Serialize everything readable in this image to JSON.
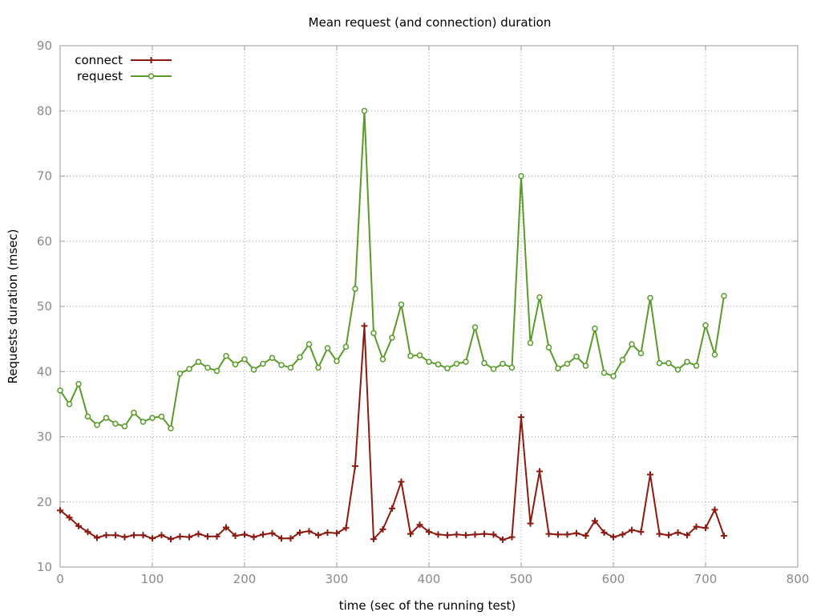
{
  "chart_data": {
    "type": "line",
    "title": "Mean request (and connection) duration",
    "xlabel": "time (sec of the running test)",
    "ylabel": "Requests duration (msec)",
    "xlim": [
      0,
      800
    ],
    "ylim": [
      10,
      90
    ],
    "xticks": [
      0,
      100,
      200,
      300,
      400,
      500,
      600,
      700,
      800
    ],
    "yticks": [
      10,
      20,
      30,
      40,
      50,
      60,
      70,
      80,
      90
    ],
    "grid": true,
    "legend_position": "top-left",
    "x": [
      0,
      10,
      20,
      30,
      40,
      50,
      60,
      70,
      80,
      90,
      100,
      110,
      120,
      130,
      140,
      150,
      160,
      170,
      180,
      190,
      200,
      210,
      220,
      230,
      240,
      250,
      260,
      270,
      280,
      290,
      300,
      310,
      320,
      330,
      340,
      350,
      360,
      370,
      380,
      390,
      400,
      410,
      420,
      430,
      440,
      450,
      460,
      470,
      480,
      490,
      500,
      510,
      520,
      530,
      540,
      550,
      560,
      570,
      580,
      590,
      600,
      610,
      620,
      630,
      640,
      650,
      660,
      670,
      680,
      690,
      700,
      710,
      720
    ],
    "series": [
      {
        "name": "connect",
        "color": "#8b1a10",
        "marker": "plus",
        "values": [
          18.7,
          17.6,
          16.3,
          15.4,
          14.5,
          14.9,
          14.9,
          14.6,
          14.9,
          14.9,
          14.4,
          14.9,
          14.3,
          14.7,
          14.6,
          15.1,
          14.7,
          14.7,
          16.1,
          14.8,
          15.0,
          14.6,
          15.0,
          15.2,
          14.4,
          14.4,
          15.3,
          15.5,
          14.9,
          15.3,
          15.2,
          16.0,
          25.5,
          47.0,
          14.3,
          15.8,
          19.0,
          23.1,
          15.1,
          16.5,
          15.4,
          15.0,
          14.9,
          15.0,
          14.9,
          15.0,
          15.1,
          15.0,
          14.2,
          14.6,
          33.0,
          16.7,
          24.7,
          15.1,
          15.0,
          15.0,
          15.2,
          14.8,
          17.1,
          15.3,
          14.6,
          15.0,
          15.7,
          15.4,
          24.2,
          15.1,
          14.9,
          15.3,
          14.9,
          16.2,
          16.0,
          18.8,
          14.8
        ]
      },
      {
        "name": "request",
        "color": "#5a9a2a",
        "marker": "circle",
        "values": [
          37.1,
          35.0,
          38.1,
          33.1,
          31.8,
          32.9,
          32.0,
          31.6,
          33.7,
          32.3,
          32.9,
          33.1,
          31.3,
          39.7,
          40.4,
          41.5,
          40.6,
          40.1,
          42.4,
          41.1,
          41.9,
          40.3,
          41.2,
          42.1,
          41.0,
          40.6,
          42.2,
          44.2,
          40.6,
          43.6,
          41.6,
          43.8,
          52.7,
          80.0,
          45.9,
          41.9,
          45.2,
          50.3,
          42.4,
          42.5,
          41.5,
          41.1,
          40.5,
          41.2,
          41.5,
          46.8,
          41.3,
          40.4,
          41.2,
          40.6,
          70.0,
          44.4,
          51.4,
          43.7,
          40.5,
          41.2,
          42.3,
          40.9,
          46.6,
          39.8,
          39.3,
          41.8,
          44.2,
          42.8,
          51.3,
          41.3,
          41.3,
          40.3,
          41.5,
          40.9,
          47.1,
          42.6,
          51.6
        ]
      }
    ]
  }
}
